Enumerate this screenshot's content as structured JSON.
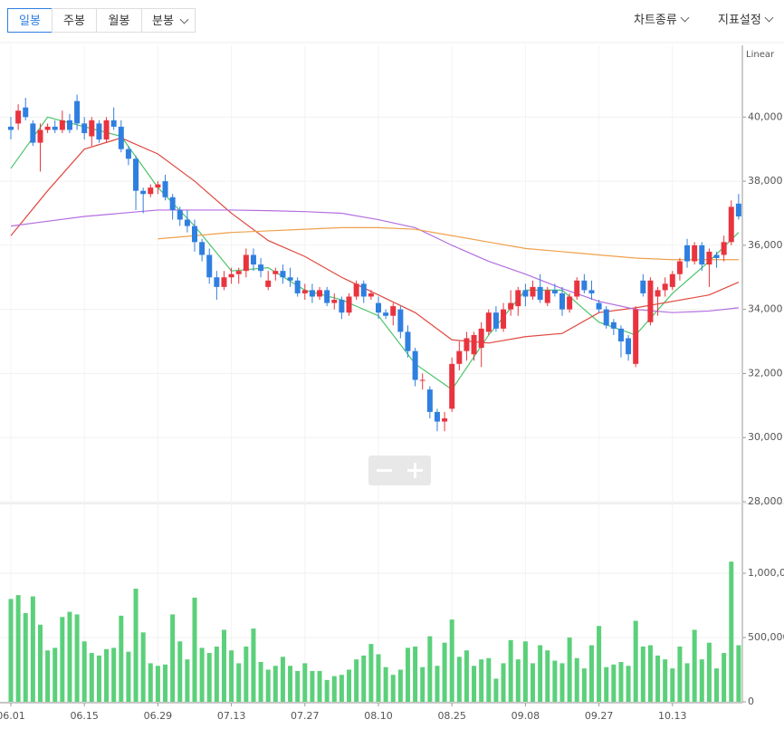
{
  "toolbar": {
    "buttons": [
      "일봉",
      "주봉",
      "월봉",
      "분봉"
    ],
    "right": [
      "차트종류",
      "지표설정"
    ]
  },
  "chart_data": [
    {
      "type": "candlestick",
      "scale_label": "Linear",
      "up_color": "#e9343f",
      "down_color": "#2f7fe0",
      "grid": true,
      "ylim": [
        28000,
        42000
      ],
      "yticks": [
        {
          "value": 28000,
          "label": "28,000"
        },
        {
          "value": 30000,
          "label": "30,000"
        },
        {
          "value": 32000,
          "label": "32,000"
        },
        {
          "value": 34000,
          "label": "34,000"
        },
        {
          "value": 36000,
          "label": "36,000"
        },
        {
          "value": 38000,
          "label": "38,000"
        },
        {
          "value": 40000,
          "label": "40,000"
        }
      ],
      "categories": [
        "06.01",
        null,
        null,
        null,
        null,
        null,
        null,
        null,
        null,
        null,
        "06.15",
        null,
        null,
        null,
        null,
        null,
        null,
        null,
        null,
        null,
        "06.29",
        null,
        null,
        null,
        null,
        null,
        null,
        null,
        null,
        null,
        "07.13",
        null,
        null,
        null,
        null,
        null,
        null,
        null,
        null,
        null,
        "07.27",
        null,
        null,
        null,
        null,
        null,
        null,
        null,
        null,
        null,
        "08.10",
        null,
        null,
        null,
        null,
        null,
        null,
        null,
        null,
        null,
        "08.25",
        null,
        null,
        null,
        null,
        null,
        null,
        null,
        null,
        null,
        "09.08",
        null,
        null,
        null,
        null,
        null,
        null,
        null,
        null,
        null,
        "09.27",
        null,
        null,
        null,
        null,
        null,
        null,
        null,
        null,
        null,
        "10.13",
        null,
        null,
        null,
        null,
        null,
        null,
        null,
        null,
        null
      ],
      "candles": [
        [
          39700,
          40000,
          39300,
          39600
        ],
        [
          39800,
          40400,
          39600,
          40200
        ],
        [
          40300,
          40600,
          39900,
          40000
        ],
        [
          39800,
          39900,
          39100,
          39200
        ],
        [
          39200,
          39800,
          38300,
          39600
        ],
        [
          39600,
          39800,
          39500,
          39700
        ],
        [
          39700,
          39900,
          39500,
          39600
        ],
        [
          39600,
          40200,
          39500,
          39900
        ],
        [
          39900,
          40100,
          39500,
          39600
        ],
        [
          40500,
          40700,
          39600,
          39800
        ],
        [
          39800,
          40000,
          39300,
          39500
        ],
        [
          39400,
          40000,
          39100,
          39900
        ],
        [
          39800,
          39900,
          39200,
          39300
        ],
        [
          39300,
          40000,
          39200,
          39900
        ],
        [
          39900,
          40300,
          39600,
          39700
        ],
        [
          39700,
          39900,
          38900,
          39000
        ],
        [
          39000,
          39100,
          38500,
          38700
        ],
        [
          38700,
          38800,
          37100,
          37700
        ],
        [
          37700,
          37800,
          37000,
          37600
        ],
        [
          37600,
          37900,
          37500,
          37800
        ],
        [
          37800,
          38000,
          37600,
          37900
        ],
        [
          38000,
          38200,
          37400,
          37500
        ],
        [
          37500,
          37600,
          36800,
          37100
        ],
        [
          37100,
          37200,
          36600,
          36800
        ],
        [
          36800,
          37100,
          36400,
          36600
        ],
        [
          36600,
          36800,
          35800,
          36100
        ],
        [
          36100,
          36200,
          35500,
          35700
        ],
        [
          35700,
          35900,
          34800,
          35000
        ],
        [
          35000,
          35200,
          34300,
          34700
        ],
        [
          34700,
          35200,
          34600,
          35000
        ],
        [
          35000,
          35300,
          34800,
          35100
        ],
        [
          35100,
          35300,
          34800,
          35200
        ],
        [
          35200,
          35900,
          35000,
          35700
        ],
        [
          35700,
          35900,
          35200,
          35400
        ],
        [
          35400,
          35600,
          35000,
          35200
        ],
        [
          34700,
          35200,
          34600,
          34900
        ],
        [
          35100,
          35300,
          34900,
          35200
        ],
        [
          35200,
          35400,
          34800,
          35000
        ],
        [
          35000,
          35300,
          34700,
          34900
        ],
        [
          34900,
          35000,
          34400,
          34500
        ],
        [
          34500,
          34800,
          34300,
          34600
        ],
        [
          34600,
          34800,
          34200,
          34400
        ],
        [
          34400,
          34700,
          34300,
          34600
        ],
        [
          34600,
          34700,
          34100,
          34200
        ],
        [
          34200,
          34500,
          34000,
          34300
        ],
        [
          34300,
          34400,
          33700,
          33900
        ],
        [
          33900,
          34500,
          33800,
          34400
        ],
        [
          34400,
          34900,
          34300,
          34800
        ],
        [
          34800,
          34900,
          34200,
          34400
        ],
        [
          34400,
          34600,
          34300,
          34500
        ],
        [
          34200,
          34400,
          33700,
          33900
        ],
        [
          33900,
          34000,
          33700,
          33800
        ],
        [
          33800,
          34200,
          33500,
          34100
        ],
        [
          34000,
          34100,
          33100,
          33300
        ],
        [
          33300,
          33500,
          32500,
          32700
        ],
        [
          32700,
          32800,
          31600,
          31800
        ],
        [
          31800,
          32000,
          31500,
          31800
        ],
        [
          31500,
          31600,
          30600,
          30800
        ],
        [
          30800,
          30900,
          30200,
          30500
        ],
        [
          30500,
          30800,
          30200,
          30600
        ],
        [
          30900,
          32500,
          30800,
          32300
        ],
        [
          32300,
          33000,
          32100,
          32700
        ],
        [
          32700,
          33300,
          32400,
          33100
        ],
        [
          32600,
          33300,
          32400,
          33200
        ],
        [
          32800,
          33600,
          32200,
          33400
        ],
        [
          33300,
          34000,
          33200,
          33900
        ],
        [
          33900,
          34100,
          33300,
          33400
        ],
        [
          33400,
          34200,
          33300,
          34000
        ],
        [
          34000,
          34600,
          33800,
          34200
        ],
        [
          34100,
          34700,
          33800,
          34600
        ],
        [
          34600,
          34800,
          34100,
          34400
        ],
        [
          34400,
          34900,
          34300,
          34700
        ],
        [
          34700,
          35100,
          34200,
          34300
        ],
        [
          34200,
          34700,
          34100,
          34600
        ],
        [
          34600,
          34800,
          34400,
          34500
        ],
        [
          34500,
          34700,
          33800,
          34000
        ],
        [
          34000,
          34500,
          33900,
          34400
        ],
        [
          34400,
          35000,
          34300,
          34900
        ],
        [
          34900,
          35100,
          34500,
          34600
        ],
        [
          34600,
          34900,
          34300,
          34500
        ],
        [
          34200,
          34300,
          33900,
          34000
        ],
        [
          34000,
          34100,
          33400,
          33500
        ],
        [
          33600,
          33700,
          33200,
          33400
        ],
        [
          33400,
          33500,
          32500,
          33000
        ],
        [
          33100,
          33200,
          32400,
          32600
        ],
        [
          32300,
          34100,
          32200,
          34000
        ],
        [
          34900,
          35100,
          34400,
          34500
        ],
        [
          33600,
          35000,
          33500,
          34900
        ],
        [
          34400,
          34700,
          33800,
          34600
        ],
        [
          34600,
          35000,
          34400,
          34800
        ],
        [
          34700,
          35200,
          34600,
          35100
        ],
        [
          35100,
          35600,
          34900,
          35500
        ],
        [
          36000,
          36200,
          35300,
          35500
        ],
        [
          35500,
          36100,
          35400,
          36000
        ],
        [
          36000,
          36100,
          35200,
          35400
        ],
        [
          35400,
          35900,
          34700,
          35800
        ],
        [
          35700,
          35800,
          35300,
          35600
        ],
        [
          35700,
          36300,
          35500,
          36100
        ],
        [
          36100,
          37400,
          36000,
          37200
        ],
        [
          37300,
          37600,
          36800,
          36900
        ]
      ],
      "lines": [
        {
          "color": "#4cc46a",
          "x": [
            0,
            5,
            10,
            15,
            20,
            25,
            30,
            35,
            40,
            45,
            50,
            55,
            60,
            65,
            70,
            75,
            80,
            85,
            90,
            95,
            99
          ],
          "values": [
            38400,
            40000,
            39700,
            39400,
            37800,
            36600,
            35200,
            35300,
            34600,
            34300,
            33800,
            32300,
            31500,
            33200,
            34600,
            34600,
            33600,
            33200,
            34500,
            35500,
            36400
          ]
        },
        {
          "color": "#e0483f",
          "x": [
            0,
            5,
            10,
            15,
            20,
            25,
            30,
            35,
            40,
            45,
            50,
            55,
            60,
            65,
            70,
            75,
            80,
            85,
            90,
            95,
            99
          ],
          "values": [
            36300,
            37700,
            39000,
            39350,
            38850,
            38000,
            37000,
            36150,
            35650,
            35000,
            34450,
            33900,
            33050,
            32950,
            33150,
            33250,
            33900,
            34050,
            34250,
            34450,
            34850
          ]
        },
        {
          "color": "#b36ee0",
          "x": [
            0,
            5,
            10,
            15,
            20,
            25,
            30,
            35,
            40,
            45,
            50,
            55,
            60,
            65,
            70,
            75,
            80,
            85,
            90,
            95,
            99
          ],
          "values": [
            36600,
            36750,
            36900,
            37000,
            37100,
            37100,
            37100,
            37080,
            37050,
            37000,
            36800,
            36550,
            36000,
            35500,
            35100,
            34650,
            34250,
            34000,
            33900,
            33950,
            34050
          ]
        },
        {
          "color": "#f0a04b",
          "x": [
            20,
            25,
            30,
            35,
            40,
            45,
            50,
            55,
            60,
            65,
            70,
            75,
            80,
            85,
            90,
            95,
            99
          ],
          "values": [
            36200,
            36300,
            36400,
            36450,
            36500,
            36550,
            36550,
            36500,
            36300,
            36100,
            35900,
            35800,
            35700,
            35600,
            35550,
            35550,
            35550
          ]
        }
      ]
    },
    {
      "type": "bar",
      "color": "#5bd07a",
      "ylim": [
        0,
        1500000
      ],
      "yticks": [
        0,
        {
          "value": 500000,
          "label": "500,000"
        },
        {
          "value": 1000000,
          "label": "1,000,000"
        }
      ],
      "values": [
        800000,
        830000,
        690000,
        820000,
        600000,
        400000,
        420000,
        660000,
        700000,
        680000,
        470000,
        380000,
        360000,
        410000,
        420000,
        670000,
        390000,
        880000,
        540000,
        300000,
        280000,
        290000,
        680000,
        470000,
        330000,
        810000,
        420000,
        380000,
        430000,
        560000,
        400000,
        300000,
        430000,
        570000,
        310000,
        250000,
        280000,
        350000,
        280000,
        240000,
        300000,
        240000,
        240000,
        170000,
        200000,
        210000,
        250000,
        330000,
        360000,
        450000,
        370000,
        270000,
        210000,
        250000,
        420000,
        430000,
        270000,
        510000,
        280000,
        460000,
        640000,
        350000,
        400000,
        280000,
        330000,
        340000,
        180000,
        300000,
        480000,
        330000,
        470000,
        300000,
        440000,
        400000,
        320000,
        300000,
        500000,
        340000,
        260000,
        440000,
        590000,
        270000,
        290000,
        310000,
        280000,
        630000,
        430000,
        440000,
        360000,
        330000,
        260000,
        430000,
        300000,
        560000,
        330000,
        460000,
        260000,
        380000,
        1090000,
        440000
      ]
    }
  ]
}
